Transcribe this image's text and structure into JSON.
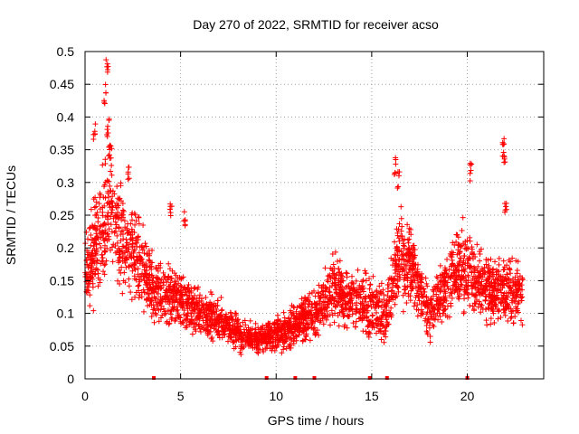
{
  "chart_data": {
    "type": "scatter",
    "title": "Day 270 of 2022, SRMTID for receiver acso",
    "xlabel": "GPS time / hours",
    "ylabel": "SRMTID / TECUs",
    "xlim": [
      0,
      24
    ],
    "ylim": [
      0,
      0.5
    ],
    "grid": true,
    "marker": "+",
    "color": "#ff0000",
    "x_ticks": [
      0,
      5,
      10,
      15,
      20
    ],
    "x_tick_labels": [
      "0",
      "5",
      "10",
      "15",
      "20"
    ],
    "y_ticks": [
      0,
      0.05,
      0.1,
      0.15,
      0.2,
      0.25,
      0.3,
      0.35,
      0.4,
      0.45,
      0.5
    ],
    "y_tick_labels": [
      "0",
      "0.05",
      "0.1",
      "0.15",
      "0.2",
      "0.25",
      "0.3",
      "0.35",
      "0.4",
      "0.45",
      "0.5"
    ],
    "zero_markers_x": [
      3.6,
      9.5,
      11.0,
      12.0,
      14.9,
      15.8,
      20.0
    ],
    "envelope": {
      "x": [
        0.0,
        0.5,
        1.0,
        1.3,
        1.8,
        2.5,
        3.0,
        3.5,
        4.0,
        5.0,
        6.0,
        7.0,
        8.0,
        9.0,
        10.0,
        11.0,
        12.0,
        13.0,
        14.0,
        15.0,
        15.8,
        16.3,
        17.0,
        17.5,
        18.0,
        18.5,
        19.0,
        19.5,
        20.0,
        20.5,
        21.0,
        21.5,
        22.0,
        22.5,
        22.9
      ],
      "center": [
        0.16,
        0.2,
        0.22,
        0.28,
        0.22,
        0.2,
        0.17,
        0.14,
        0.13,
        0.12,
        0.1,
        0.09,
        0.07,
        0.06,
        0.07,
        0.08,
        0.1,
        0.14,
        0.12,
        0.11,
        0.1,
        0.18,
        0.18,
        0.14,
        0.1,
        0.12,
        0.15,
        0.17,
        0.17,
        0.15,
        0.14,
        0.13,
        0.14,
        0.13,
        0.13
      ],
      "spread": [
        0.05,
        0.08,
        0.09,
        0.1,
        0.08,
        0.07,
        0.06,
        0.05,
        0.04,
        0.04,
        0.035,
        0.03,
        0.025,
        0.02,
        0.025,
        0.03,
        0.035,
        0.05,
        0.045,
        0.045,
        0.04,
        0.07,
        0.06,
        0.05,
        0.04,
        0.045,
        0.05,
        0.06,
        0.06,
        0.05,
        0.05,
        0.045,
        0.05,
        0.045,
        0.045
      ]
    },
    "peaks": [
      {
        "x": 1.15,
        "y": 0.49
      },
      {
        "x": 1.05,
        "y": 0.45
      },
      {
        "x": 1.2,
        "y": 0.4
      },
      {
        "x": 0.5,
        "y": 0.39
      },
      {
        "x": 1.3,
        "y": 0.36
      },
      {
        "x": 2.3,
        "y": 0.33
      },
      {
        "x": 16.4,
        "y": 0.32
      },
      {
        "x": 16.2,
        "y": 0.34
      },
      {
        "x": 20.2,
        "y": 0.33
      },
      {
        "x": 21.9,
        "y": 0.37
      },
      {
        "x": 21.95,
        "y": 0.35
      },
      {
        "x": 22.0,
        "y": 0.28
      },
      {
        "x": 5.2,
        "y": 0.26
      },
      {
        "x": 4.5,
        "y": 0.27
      }
    ],
    "point_count": 3200
  }
}
